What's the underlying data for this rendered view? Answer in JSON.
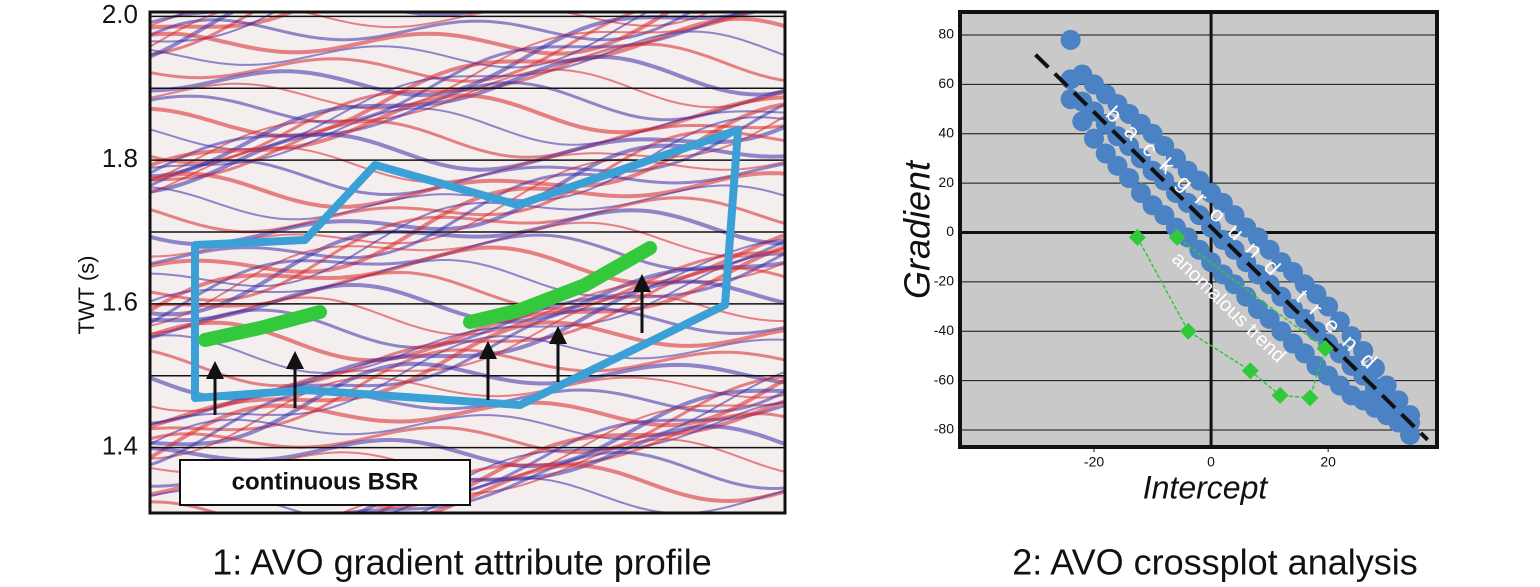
{
  "chart_data": [
    {
      "type": "image",
      "ylabel": "TWT (s)",
      "ylim": [
        1.309,
        2.006
      ],
      "yticks": [
        1.4,
        1.6,
        1.8,
        {
          "value": 2,
          "label": "2.0"
        }
      ],
      "yminor": [
        1.5,
        1.7,
        1.9
      ],
      "annotation": "continuous BSR",
      "caption": "1: AVO gradient attribute profile"
    },
    {
      "type": "scatter",
      "xlabel": "Intercept",
      "ylabel": "Gradient",
      "xlim": [
        -42.9,
        38.6
      ],
      "ylim": [
        -86.9,
        89.3
      ],
      "xticks": [
        -20,
        0,
        20
      ],
      "yticks": [
        80,
        60,
        40,
        20,
        0,
        -20,
        -40,
        -60,
        -80
      ],
      "grid": true,
      "background": "#c9c9c9",
      "annotations": [
        "background trend",
        "anomalous trend"
      ],
      "caption": "2: AVO crossplot analysis",
      "trend_line": {
        "x": [
          -30,
          37
        ],
        "y": [
          72,
          -84
        ]
      },
      "series": [
        {
          "color": "#4a82c4",
          "x": [
            -24,
            -24,
            -24,
            -22,
            -22,
            -22,
            -20,
            -20,
            -20,
            -18,
            -18,
            -18,
            -16,
            -16,
            -16,
            -14,
            -14,
            -14,
            -12,
            -12,
            -12,
            -10,
            -10,
            -10,
            -8,
            -8,
            -8,
            -6,
            -6,
            -6,
            -4,
            -4,
            -4,
            -2,
            -2,
            -2,
            0,
            0,
            0,
            2,
            2,
            2,
            4,
            4,
            4,
            6,
            6,
            6,
            8,
            8,
            8,
            10,
            10,
            10,
            12,
            12,
            12,
            14,
            14,
            14,
            16,
            16,
            16,
            18,
            18,
            18,
            20,
            20,
            20,
            22,
            22,
            22,
            24,
            24,
            24,
            26,
            26,
            26,
            28,
            28,
            28,
            30,
            30,
            30,
            32,
            32,
            32,
            34,
            34,
            34
          ],
          "values": [
            78,
            62,
            54,
            64,
            53,
            45,
            60,
            49,
            38,
            56,
            44,
            32,
            52,
            39,
            27,
            48,
            35,
            22,
            44,
            30,
            16,
            40,
            25,
            11,
            35,
            21,
            7,
            30,
            16,
            2,
            25,
            12,
            -2,
            21,
            7,
            -7,
            16,
            2,
            -12,
            12,
            -3,
            -17,
            7,
            -7,
            -21,
            2,
            -12,
            -26,
            -2,
            -17,
            -31,
            -7,
            -21,
            -35,
            -12,
            -26,
            -40,
            -16,
            -31,
            -45,
            -21,
            -35,
            -49,
            -25,
            -40,
            -54,
            -30,
            -45,
            -58,
            -36,
            -49,
            -62,
            -42,
            -54,
            -66,
            -48,
            -58,
            -68,
            -55,
            -63,
            -71,
            -62,
            -68,
            -74,
            -68,
            -72,
            -77,
            -74,
            -77,
            -82
          ]
        },
        {
          "color": "#2fc93a",
          "x": [
            -12.6,
            -3.9,
            6.7,
            11.8,
            16.9,
            19.5,
            -5.8
          ],
          "values": [
            -2,
            -40,
            -56,
            -66,
            -67,
            -47,
            -2
          ],
          "connected": true
        }
      ]
    }
  ]
}
